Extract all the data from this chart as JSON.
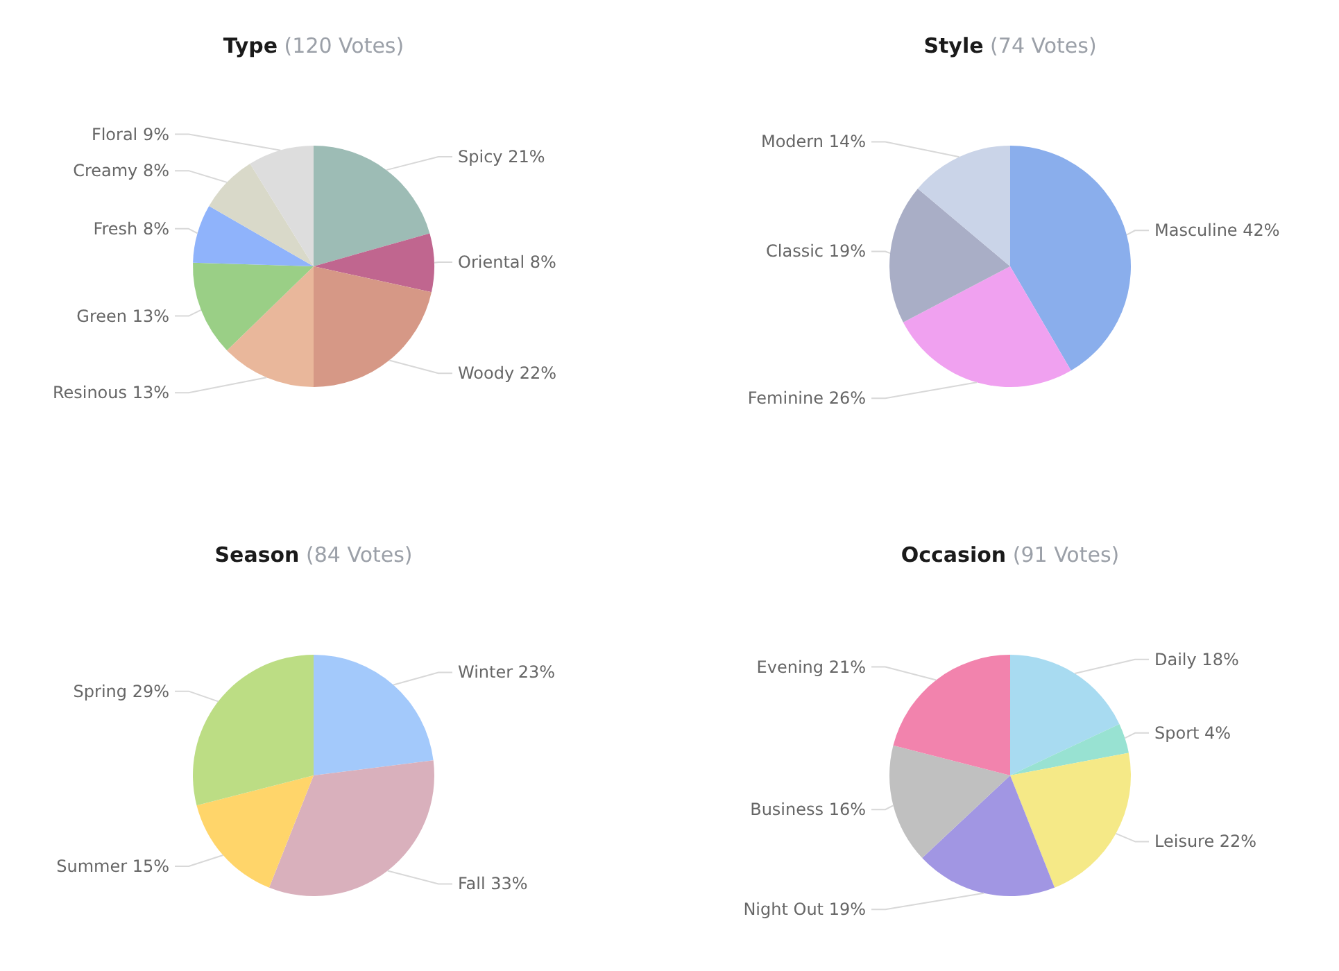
{
  "chart_data": [
    {
      "type": "pie",
      "title": "Type",
      "subtitle": "(120 Votes)",
      "categories": [
        "Spicy",
        "Oriental",
        "Woody",
        "Resinous",
        "Green",
        "Fresh",
        "Creamy",
        "Floral"
      ],
      "values": [
        21,
        8,
        22,
        13,
        13,
        8,
        8,
        9
      ],
      "value_labels": [
        "21%",
        "8%",
        "22%",
        "13%",
        "13%",
        "8%",
        "8%",
        "9%"
      ],
      "colors": [
        "#9dbcb5",
        "#c0668f",
        "#d69886",
        "#e9b79b",
        "#9acf86",
        "#8fb3fb",
        "#d9d9c9",
        "#dddddd"
      ]
    },
    {
      "type": "pie",
      "title": "Style",
      "subtitle": "(74 Votes)",
      "categories": [
        "Masculine",
        "Feminine",
        "Classic",
        "Modern"
      ],
      "values": [
        42,
        26,
        19,
        14
      ],
      "value_labels": [
        "42%",
        "26%",
        "19%",
        "14%"
      ],
      "colors": [
        "#8aaeec",
        "#f0a1f0",
        "#a9aec6",
        "#cad4e8"
      ]
    },
    {
      "type": "pie",
      "title": "Season",
      "subtitle": "(84 Votes)",
      "categories": [
        "Winter",
        "Fall",
        "Summer",
        "Spring"
      ],
      "values": [
        23,
        33,
        15,
        29
      ],
      "value_labels": [
        "23%",
        "33%",
        "15%",
        "29%"
      ],
      "colors": [
        "#a3c9fb",
        "#d9b0bc",
        "#ffd56a",
        "#bcdd84"
      ]
    },
    {
      "type": "pie",
      "title": "Occasion",
      "subtitle": "(91 Votes)",
      "categories": [
        "Daily",
        "Sport",
        "Leisure",
        "Night Out",
        "Business",
        "Evening"
      ],
      "values": [
        18,
        4,
        22,
        19,
        16,
        21
      ],
      "value_labels": [
        "18%",
        "4%",
        "22%",
        "19%",
        "16%",
        "21%"
      ],
      "colors": [
        "#a8dbf1",
        "#98e2d2",
        "#f5e987",
        "#a196e3",
        "#c0c0c0",
        "#f283ad"
      ]
    }
  ]
}
